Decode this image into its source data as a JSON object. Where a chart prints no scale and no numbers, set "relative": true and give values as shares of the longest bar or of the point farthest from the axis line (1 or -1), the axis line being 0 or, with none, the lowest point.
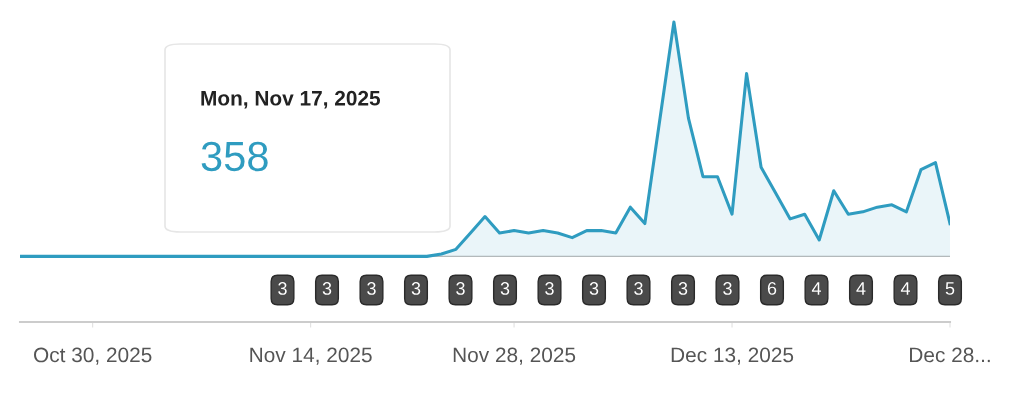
{
  "chart_data": {
    "type": "area",
    "relative": true,
    "color": "#2f9cc0",
    "x": [
      "2025-10-25",
      "2025-10-26",
      "2025-10-27",
      "2025-10-28",
      "2025-10-29",
      "2025-10-30",
      "2025-10-31",
      "2025-11-01",
      "2025-11-02",
      "2025-11-03",
      "2025-11-04",
      "2025-11-05",
      "2025-11-06",
      "2025-11-07",
      "2025-11-08",
      "2025-11-09",
      "2025-11-10",
      "2025-11-11",
      "2025-11-12",
      "2025-11-13",
      "2025-11-14",
      "2025-11-15",
      "2025-11-16",
      "2025-11-17",
      "2025-11-18",
      "2025-11-19",
      "2025-11-20",
      "2025-11-21",
      "2025-11-22",
      "2025-11-23",
      "2025-11-24",
      "2025-11-25",
      "2025-11-26",
      "2025-11-27",
      "2025-11-28",
      "2025-11-29",
      "2025-11-30",
      "2025-12-01",
      "2025-12-02",
      "2025-12-03",
      "2025-12-04",
      "2025-12-05",
      "2025-12-06",
      "2025-12-07",
      "2025-12-08",
      "2025-12-09",
      "2025-12-10",
      "2025-12-11",
      "2025-12-12",
      "2025-12-13",
      "2025-12-14",
      "2025-12-15",
      "2025-12-16",
      "2025-12-17",
      "2025-12-18",
      "2025-12-19",
      "2025-12-20",
      "2025-12-21",
      "2025-12-22",
      "2025-12-23",
      "2025-12-24",
      "2025-12-25",
      "2025-12-26",
      "2025-12-27",
      "2025-12-28"
    ],
    "values": [
      0,
      0,
      0,
      0,
      0,
      0,
      0,
      0,
      0,
      0,
      0,
      0,
      0,
      0,
      0,
      0,
      0,
      0,
      0,
      0,
      0,
      0,
      0,
      0,
      0,
      0,
      0,
      0,
      0,
      0.01,
      0.03,
      0.1,
      0.17,
      0.1,
      0.11,
      0.1,
      0.11,
      0.1,
      0.08,
      0.11,
      0.11,
      0.1,
      0.21,
      0.14,
      0.57,
      1,
      0.59,
      0.34,
      0.34,
      0.18,
      0.78,
      0.38,
      0.27,
      0.16,
      0.18,
      0.07,
      0.28,
      0.18,
      0.19,
      0.21,
      0.22,
      0.19,
      0.37,
      0.4,
      0.14
    ],
    "xlim": [
      "2025-10-25",
      "2025-12-28"
    ],
    "xticks": [
      {
        "value": "2025-10-30",
        "label": "Oct 30, 2025"
      },
      {
        "value": "2025-11-14",
        "label": "Nov 14, 2025"
      },
      {
        "value": "2025-11-28",
        "label": "Nov 28, 2025"
      },
      {
        "value": "2025-12-13",
        "label": "Dec 13, 2025"
      },
      {
        "value": "2025-12-28",
        "label": "Dec 28..."
      }
    ],
    "annotations": [
      "Mon, Nov 17, 2025",
      "358",
      "3",
      "3",
      "3",
      "3",
      "3",
      "3",
      "3",
      "3",
      "3",
      "3",
      "3",
      "6",
      "4",
      "4",
      "4",
      "5"
    ]
  }
}
